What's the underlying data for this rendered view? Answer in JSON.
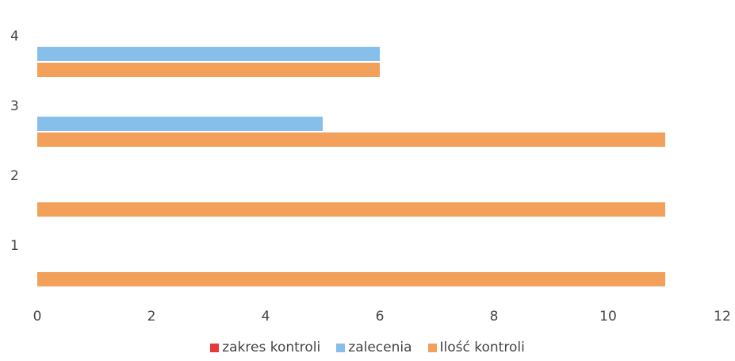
{
  "chart_data": {
    "type": "bar",
    "orientation": "horizontal",
    "categories": [
      "1",
      "2",
      "3",
      "4"
    ],
    "series": [
      {
        "name": "zakres kontroli",
        "color": "#e8393a",
        "values": [
          0,
          0,
          0,
          0
        ]
      },
      {
        "name": "zalecenia",
        "color": "#86bfea",
        "values": [
          0,
          0,
          5,
          6
        ]
      },
      {
        "name": "Ilość kontroli",
        "color": "#f2a05a",
        "values": [
          11,
          11,
          11,
          6
        ]
      }
    ],
    "xlim": [
      0,
      12
    ],
    "xticks": [
      "0",
      "2",
      "4",
      "6",
      "8",
      "10",
      "12"
    ],
    "legend_position": "bottom",
    "grid": false
  }
}
